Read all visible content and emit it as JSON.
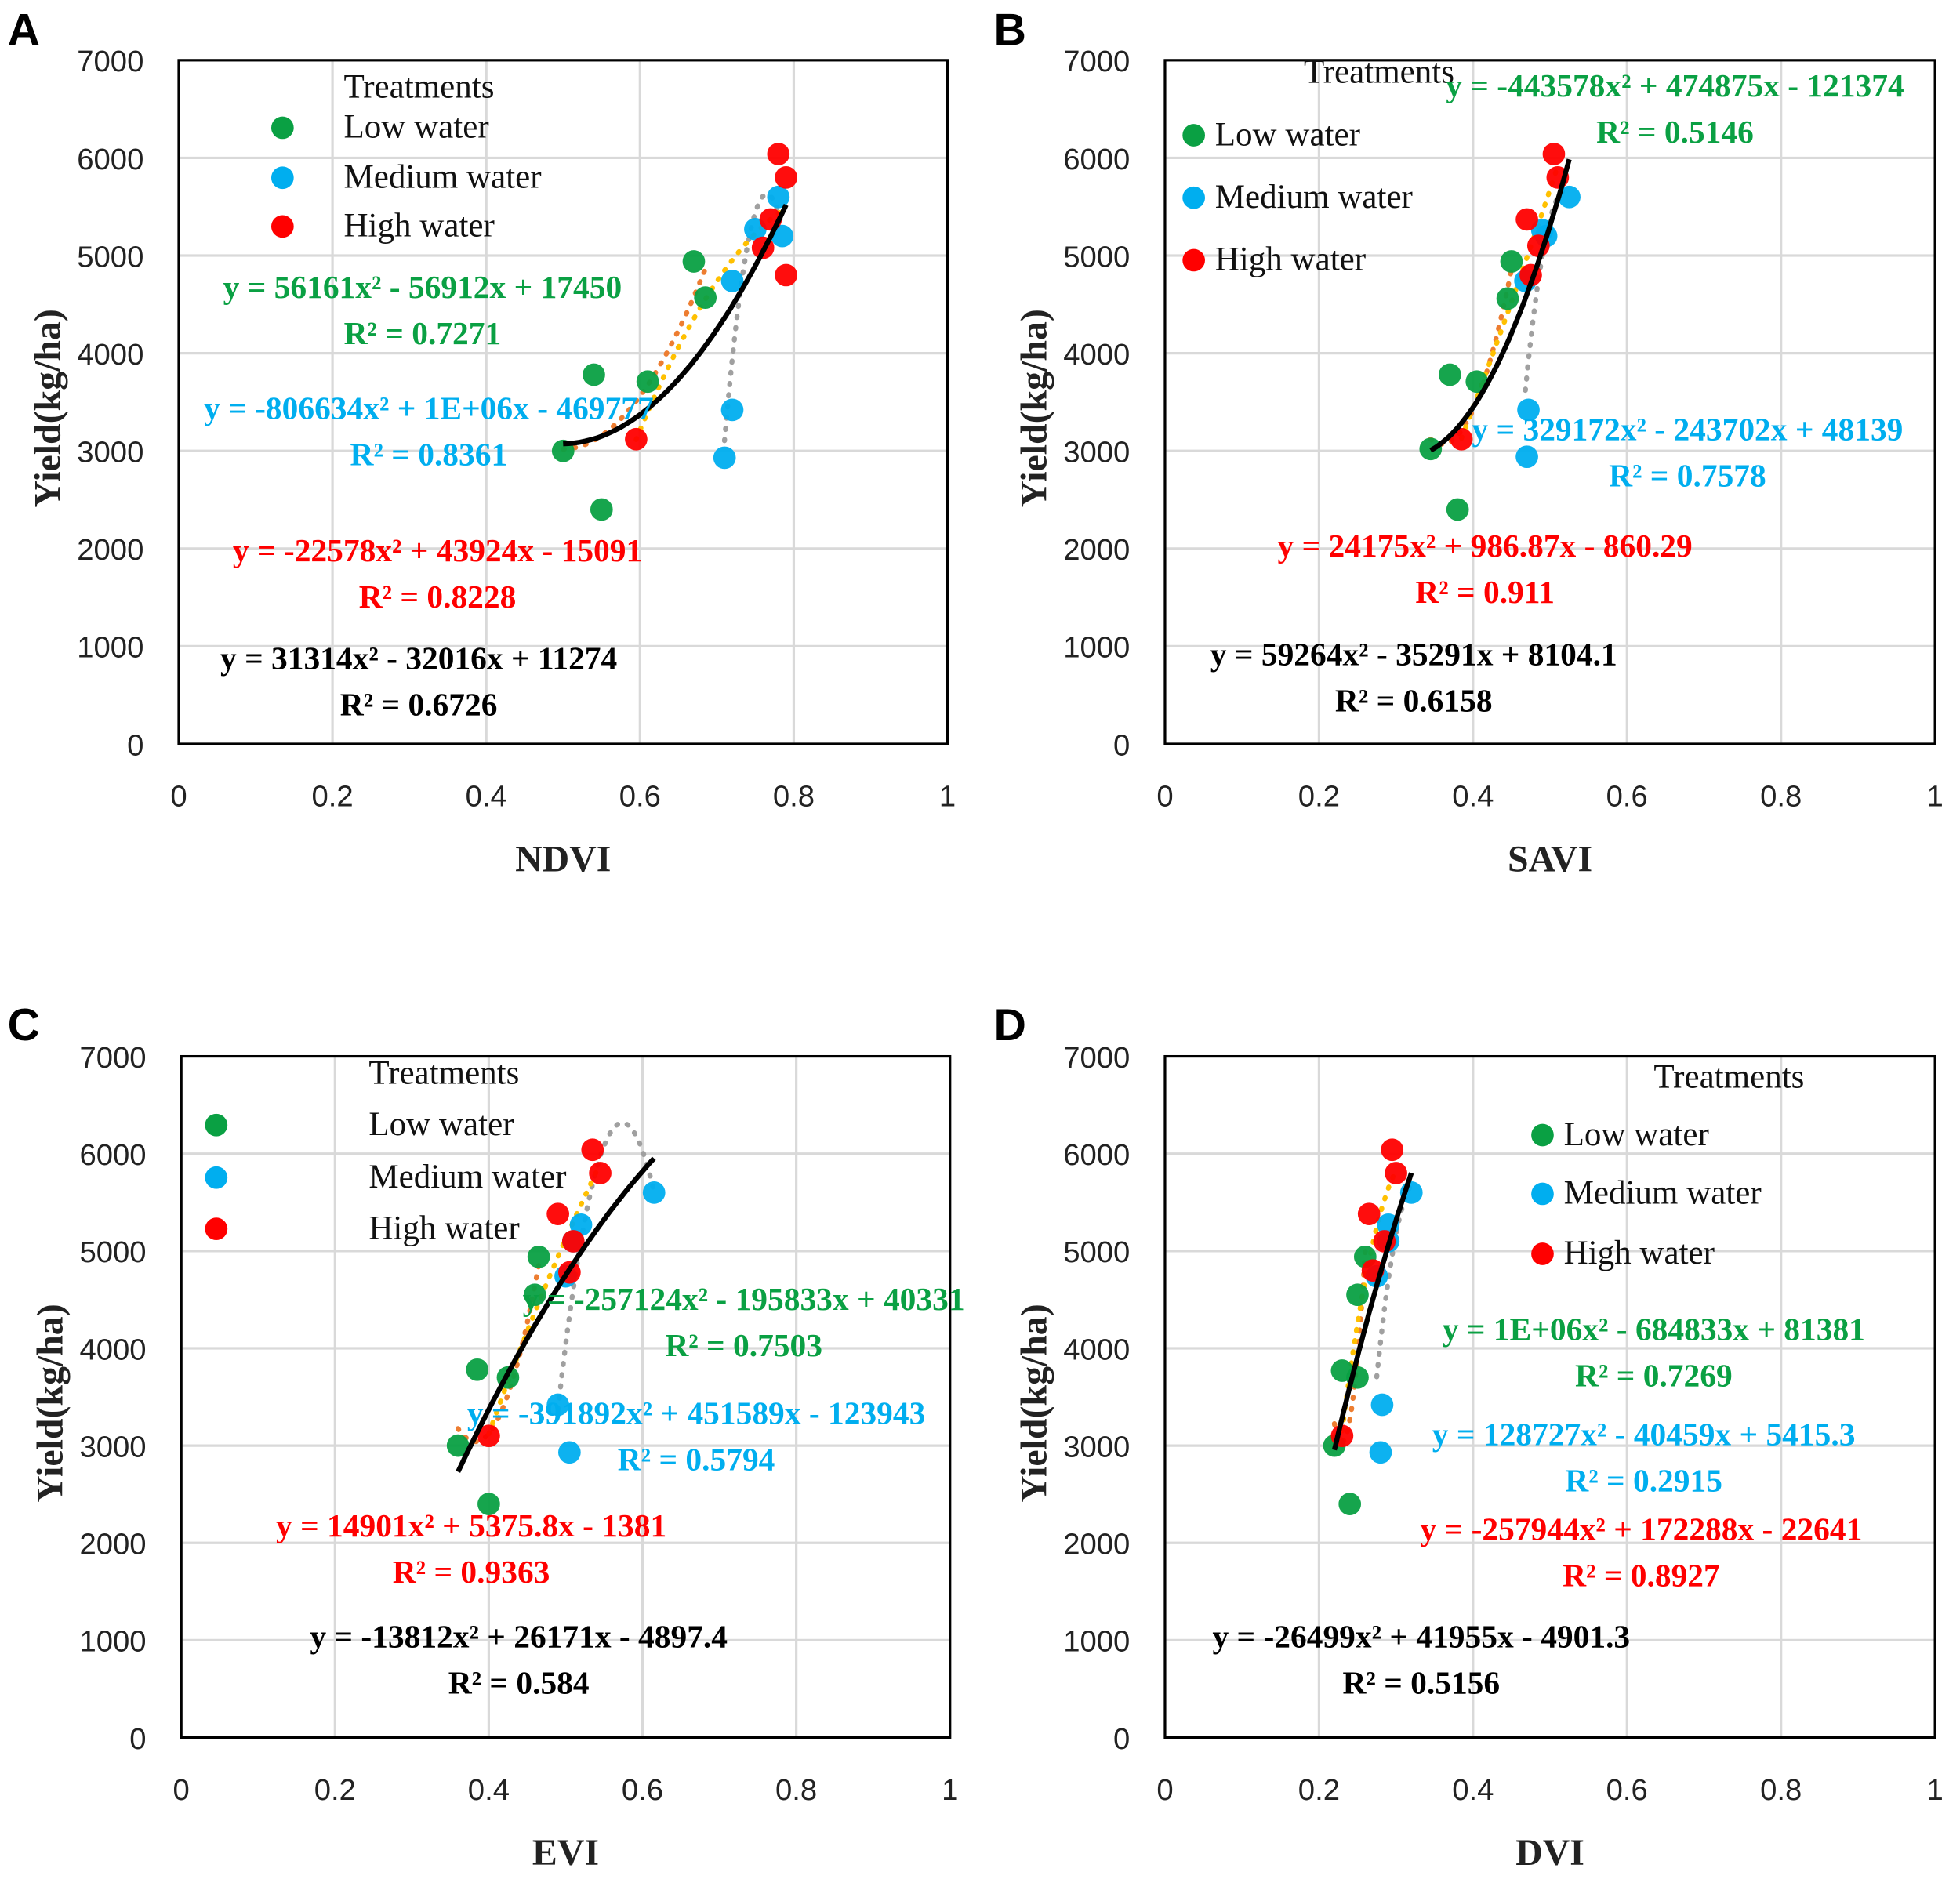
{
  "colors": {
    "low": "#0AA043",
    "medium": "#00AEEF",
    "high": "#FF0000",
    "overall": "#000000",
    "trend_low": "#ED7D31",
    "trend_medium": "#A0A0A0",
    "trend_high": "#FFC000"
  },
  "legend": {
    "title": "Treatments",
    "items": [
      "Low water",
      "Medium water",
      "High water"
    ]
  },
  "chart_data": [
    {
      "type": "scatter",
      "panel": "A",
      "xlabel": "NDVI",
      "ylabel": "Yield(kg/ha)",
      "xlim": [
        0,
        1
      ],
      "ylim": [
        0,
        7000
      ],
      "xticks": [
        "0",
        "0.2",
        "0.4",
        "0.6",
        "0.8",
        "1"
      ],
      "yticks": [
        "0",
        "1000",
        "2000",
        "3000",
        "4000",
        "5000",
        "6000",
        "7000"
      ],
      "grid": true,
      "legend_position": "top-left",
      "series": [
        {
          "name": "Low water",
          "x": [
            0.5,
            0.55,
            0.54,
            0.61,
            0.67,
            0.685
          ],
          "y": [
            3000,
            2400,
            3780,
            3710,
            4940,
            4570
          ],
          "equation": "y = 56161x² - 56912x + 17450",
          "r2": "R² = 0.7271"
        },
        {
          "name": "Medium water",
          "x": [
            0.71,
            0.72,
            0.72,
            0.75,
            0.78,
            0.785
          ],
          "y": [
            2930,
            3420,
            4740,
            5270,
            5600,
            5200
          ],
          "equation": "y = -806634x² + 1E+06x - 469777",
          "r2": "R² = 0.8361"
        },
        {
          "name": "High water",
          "x": [
            0.595,
            0.76,
            0.77,
            0.78,
            0.79,
            0.79
          ],
          "y": [
            3120,
            5080,
            5370,
            6040,
            5800,
            4800
          ],
          "equation": "y = -22578x² + 43924x - 15091",
          "r2": "R² = 0.8228"
        }
      ],
      "overall": {
        "equation": "y = 31314x² - 32016x + 11274",
        "r2": "R² = 0.6726"
      }
    },
    {
      "type": "scatter",
      "panel": "B",
      "xlabel": "SAVI",
      "ylabel": "Yield(kg/ha)",
      "xlim": [
        0,
        1
      ],
      "ylim": [
        0,
        7000
      ],
      "xticks": [
        "0",
        "0.2",
        "0.4",
        "0.6",
        "0.8",
        "1"
      ],
      "yticks": [
        "0",
        "1000",
        "2000",
        "3000",
        "4000",
        "5000",
        "6000",
        "7000"
      ],
      "grid": true,
      "legend_position": "top-left",
      "series": [
        {
          "name": "Low water",
          "x": [
            0.345,
            0.38,
            0.37,
            0.405,
            0.445,
            0.45
          ],
          "y": [
            3020,
            2400,
            3780,
            3710,
            4560,
            4940
          ],
          "equation": "y = -443578x² + 474875x - 121374",
          "r2": "R² = 0.5146"
        },
        {
          "name": "Medium water",
          "x": [
            0.47,
            0.472,
            0.468,
            0.49,
            0.495,
            0.525
          ],
          "y": [
            2940,
            3420,
            4740,
            5260,
            5200,
            5600
          ],
          "equation": "y = 329172x² - 243702x + 48139",
          "r2": "R² = 0.7578"
        },
        {
          "name": "High water",
          "x": [
            0.385,
            0.475,
            0.485,
            0.47,
            0.505,
            0.51
          ],
          "y": [
            3120,
            4800,
            5100,
            5370,
            6040,
            5800
          ],
          "equation": "y = 24175x² + 986.87x - 860.29",
          "r2": "R² = 0.911"
        }
      ],
      "overall": {
        "equation": "y = 59264x² - 35291x + 8104.1",
        "r2": "R² = 0.6158"
      }
    },
    {
      "type": "scatter",
      "panel": "C",
      "xlabel": "EVI",
      "ylabel": "Yield(kg/ha)",
      "xlim": [
        0,
        1
      ],
      "ylim": [
        0,
        7000
      ],
      "xticks": [
        "0",
        "0.2",
        "0.4",
        "0.6",
        "0.8",
        "1"
      ],
      "yticks": [
        "0",
        "1000",
        "2000",
        "3000",
        "4000",
        "5000",
        "6000",
        "7000"
      ],
      "grid": true,
      "legend_position": "top-left",
      "series": [
        {
          "name": "Low water",
          "x": [
            0.36,
            0.4,
            0.385,
            0.425,
            0.46,
            0.465
          ],
          "y": [
            3000,
            2400,
            3780,
            3700,
            4550,
            4940
          ],
          "equation": "y = -257124x² - 195833x + 40331",
          "r2": "R² = 0.7503"
        },
        {
          "name": "Medium water",
          "x": [
            0.49,
            0.505,
            0.5,
            0.52,
            0.51,
            0.615
          ],
          "y": [
            3420,
            2930,
            4740,
            5270,
            5100,
            5600
          ],
          "equation": "y = -391892x² + 451589x - 123943",
          "r2": "R² = 0.5794"
        },
        {
          "name": "High water",
          "x": [
            0.4,
            0.49,
            0.51,
            0.505,
            0.535,
            0.545
          ],
          "y": [
            3100,
            5380,
            5100,
            4780,
            6040,
            5800
          ],
          "equation": "y = 14901x² + 5375.8x - 1381",
          "r2": "R² = 0.9363"
        }
      ],
      "overall": {
        "equation": "y = -13812x² + 26171x - 4897.4",
        "r2": "R² = 0.584"
      }
    },
    {
      "type": "scatter",
      "panel": "D",
      "xlabel": "DVI",
      "ylabel": "Yield(kg/ha)",
      "xlim": [
        0,
        1
      ],
      "ylim": [
        0,
        7000
      ],
      "xticks": [
        "0",
        "0.2",
        "0.4",
        "0.6",
        "0.8",
        "1"
      ],
      "yticks": [
        "0",
        "1000",
        "2000",
        "3000",
        "4000",
        "5000",
        "6000",
        "7000"
      ],
      "grid": true,
      "legend_position": "top-right",
      "series": [
        {
          "name": "Low water",
          "x": [
            0.22,
            0.24,
            0.23,
            0.25,
            0.25,
            0.26
          ],
          "y": [
            3000,
            2400,
            3770,
            3700,
            4550,
            4940
          ],
          "equation": "y = 1E+06x² - 684833x + 81381",
          "r2": "R² = 0.7269"
        },
        {
          "name": "Medium water",
          "x": [
            0.28,
            0.282,
            0.275,
            0.29,
            0.29,
            0.32
          ],
          "y": [
            2930,
            3420,
            4740,
            5270,
            5100,
            5600
          ],
          "equation": "y = 128727x² - 40459x + 5415.3",
          "r2": "R² = 0.2915"
        },
        {
          "name": "High water",
          "x": [
            0.23,
            0.265,
            0.27,
            0.285,
            0.295,
            0.3
          ],
          "y": [
            3100,
            5380,
            4800,
            5100,
            6040,
            5800
          ],
          "equation": "y = -257944x² + 172288x - 22641",
          "r2": "R² = 0.8927"
        }
      ],
      "overall": {
        "equation": "y = -26499x² + 41955x - 4901.3",
        "r2": "R² = 0.5156"
      }
    }
  ]
}
